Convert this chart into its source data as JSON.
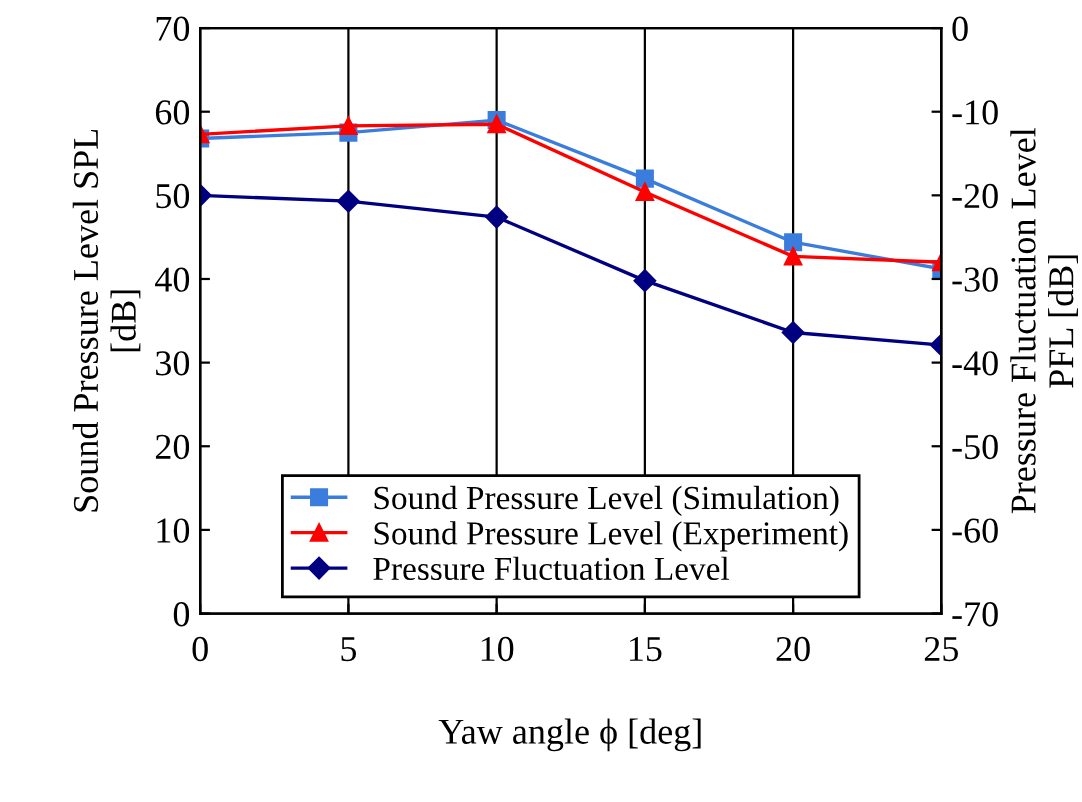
{
  "chart_data": {
    "type": "line",
    "x": [
      0,
      5,
      10,
      15,
      20,
      25
    ],
    "xlabel": "Yaw angle ϕ [deg]",
    "ylabel": "Sound Pressure Level SPL\n[dB]",
    "y2label": "Pressure Fluctuation Level\nPFL [dB]",
    "xlim": [
      0,
      25
    ],
    "xticks": [
      0,
      5,
      10,
      15,
      20,
      25
    ],
    "ylim": [
      0,
      70
    ],
    "yticks": [
      0,
      10,
      20,
      30,
      40,
      50,
      60,
      70
    ],
    "y2lim": [
      -70,
      0
    ],
    "y2ticks": [
      -70,
      -60,
      -50,
      -40,
      -30,
      -20,
      -10,
      0
    ],
    "grid": "x",
    "legend": "bottom",
    "line_style": "solid",
    "series": [
      {
        "name": "Sound Pressure Level (Simulation)",
        "color": "#3b7ddd",
        "marker": "square",
        "values": [
          56.8,
          57.5,
          59,
          52,
          44.4,
          41.2
        ]
      },
      {
        "name": "Sound Pressure Level (Experiment)",
        "color": "#ff0000",
        "marker": "triangle",
        "values": [
          57.3,
          58.3,
          58.5,
          50.4,
          42.7,
          42
        ]
      },
      {
        "name": "Pressure Fluctuation Level",
        "color": "#000080",
        "marker": "diamond",
        "axis": "y2",
        "values": [
          -20,
          -20.7,
          -22.6,
          -30.2,
          -36.4,
          -37.9
        ]
      }
    ]
  }
}
